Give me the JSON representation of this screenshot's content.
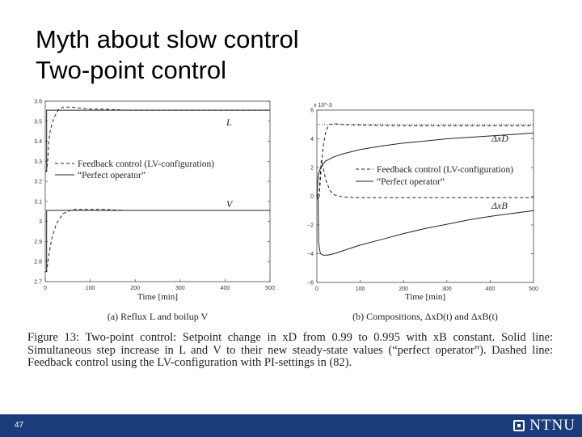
{
  "slide": {
    "title_line1": "Myth about slow control",
    "title_line2": "Two-point control",
    "page_number": "47",
    "logo_text": "NTNU"
  },
  "caption": {
    "text": "Figure 13: Two-point control: Setpoint change in xD from 0.99 to 0.995 with xB constant. Solid line: Simultaneous step increase in L and V to their new steady-state values (“perfect operator”). Dashed line: Feedback control using the LV-configuration with PI-settings in (82)."
  },
  "chart_data": [
    {
      "type": "line",
      "caption": "(a) Reflux L and boilup V",
      "xlabel": "Time [min]",
      "xlim": [
        0,
        500
      ],
      "ylim": [
        2.7,
        3.6
      ],
      "x_ticks": [
        "0",
        "100",
        "200",
        "300",
        "400",
        "500"
      ],
      "y_ticks": [
        "2.7",
        "2.8",
        "2.9",
        "3",
        "3.1",
        "3.2",
        "3.3",
        "3.4",
        "3.5",
        "3.6"
      ],
      "annotations": [
        "L",
        "V"
      ],
      "legend": [
        "Feedback control (LV-configuration)",
        "“Perfect operator”"
      ],
      "legend_placement": "center-left",
      "series": [
        {
          "style": "dashed",
          "x": [
            0,
            3,
            6,
            8,
            10,
            14,
            20,
            30,
            40,
            60,
            80,
            100,
            130,
            180,
            250,
            300,
            400,
            500
          ],
          "y": [
            3.25,
            3.25,
            3.32,
            3.4,
            3.44,
            3.48,
            3.52,
            3.56,
            3.57,
            3.57,
            3.565,
            3.56,
            3.56,
            3.555,
            3.555,
            3.555,
            3.555,
            3.555
          ]
        },
        {
          "style": "solid",
          "x": [
            0,
            3,
            3,
            500
          ],
          "y": [
            3.25,
            3.25,
            3.555,
            3.555
          ]
        },
        {
          "style": "dashed",
          "x": [
            0,
            3,
            6,
            10,
            15,
            25,
            40,
            60,
            80,
            100,
            130,
            180,
            250,
            300,
            400,
            500
          ],
          "y": [
            2.75,
            2.75,
            2.8,
            2.86,
            2.92,
            2.99,
            3.04,
            3.06,
            3.06,
            3.06,
            3.06,
            3.055,
            3.055,
            3.055,
            3.055,
            3.055
          ]
        },
        {
          "style": "solid",
          "x": [
            0,
            3,
            3,
            500
          ],
          "y": [
            2.75,
            2.75,
            3.055,
            3.055
          ]
        }
      ]
    },
    {
      "type": "line",
      "caption": "(b) Compositions, ΔxD(t) and ΔxB(t)",
      "xlabel": "Time [min]",
      "xlim": [
        0,
        500
      ],
      "ylim": [
        -6,
        6
      ],
      "y_scale_label": "x 10^-3",
      "x_ticks": [
        "0",
        "100",
        "200",
        "300",
        "400",
        "500"
      ],
      "y_ticks": [
        "−6",
        "−4",
        "−2",
        "0",
        "2",
        "4",
        "6"
      ],
      "annotations": [
        "ΔxD",
        "ΔxB"
      ],
      "legend": [
        "Feedback control (LV-configuration)",
        "“Perfect operator”"
      ],
      "legend_placement": "center-right",
      "series": [
        {
          "style": "dotted",
          "x": [
            0,
            10,
            20,
            40,
            60,
            100,
            200,
            300,
            400,
            500
          ],
          "y": [
            5,
            5,
            5,
            5,
            5,
            5,
            5,
            5,
            5,
            5
          ]
        },
        {
          "style": "dashed",
          "x": [
            0,
            5,
            10,
            15,
            20,
            25,
            30,
            40,
            60,
            100,
            200,
            300,
            400,
            500
          ],
          "y": [
            0,
            -0.2,
            2.0,
            3.5,
            4.4,
            4.8,
            5.0,
            5.05,
            5.0,
            4.95,
            4.9,
            4.9,
            4.9,
            4.9
          ]
        },
        {
          "style": "solid",
          "x": [
            0,
            3,
            10,
            20,
            40,
            60,
            100,
            150,
            200,
            250,
            300,
            350,
            400,
            450,
            500
          ],
          "y": [
            0,
            1.5,
            2.1,
            2.45,
            2.75,
            2.95,
            3.25,
            3.5,
            3.7,
            3.85,
            4.0,
            4.1,
            4.2,
            4.3,
            4.4
          ]
        },
        {
          "style": "dashed",
          "x": [
            0,
            5,
            10,
            15,
            20,
            30,
            40,
            60,
            100,
            150,
            200,
            300,
            400,
            500
          ],
          "y": [
            0,
            0.2,
            2.5,
            2.0,
            1.2,
            0.4,
            0.1,
            -0.05,
            -0.1,
            -0.1,
            -0.1,
            -0.1,
            -0.1,
            -0.1
          ]
        },
        {
          "style": "solid",
          "x": [
            0,
            3,
            4,
            8,
            15,
            25,
            40,
            60,
            100,
            150,
            200,
            250,
            300,
            350,
            400,
            450,
            500
          ],
          "y": [
            0,
            -0.3,
            -3.2,
            -4.0,
            -4.1,
            -4.1,
            -4.0,
            -3.8,
            -3.4,
            -3.0,
            -2.6,
            -2.25,
            -1.95,
            -1.65,
            -1.4,
            -1.2,
            -1.0
          ]
        }
      ]
    }
  ]
}
